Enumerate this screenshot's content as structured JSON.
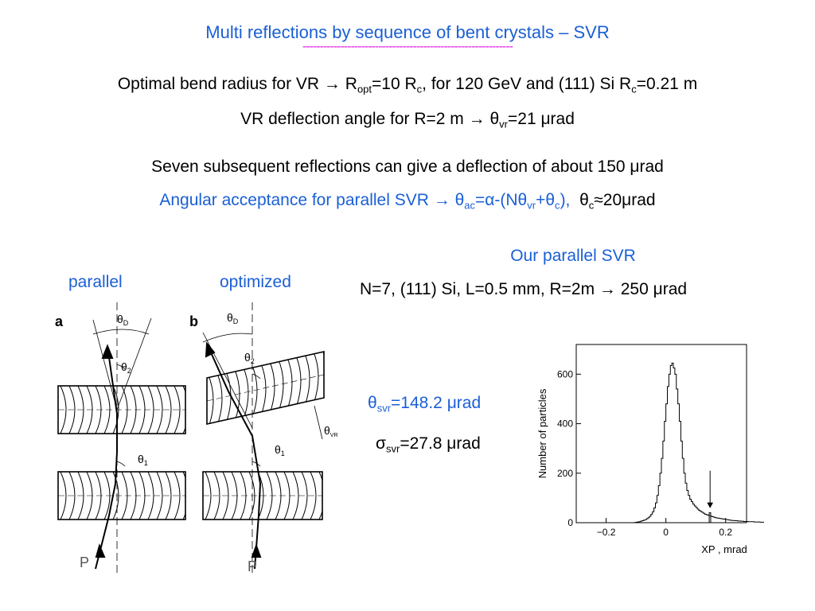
{
  "title": "Multi reflections by sequence of bent crystals – SVR",
  "title_underline": "-------------------------------------------------------------",
  "line1": {
    "a": "Optimal bend radius for VR → R",
    "sub1": "opt",
    "b": "=10 R",
    "sub2": "c",
    "c": ", for 120 GeV and (111) Si R",
    "sub3": "c",
    "d": "=0.21 m"
  },
  "line2": {
    "a": "VR deflection  angle for R=2 m → θ",
    "sub1": "vr",
    "b": "=21 μrad"
  },
  "line3": "Seven subsequent reflections can give a deflection of about 150 μrad",
  "line4": {
    "a": "Angular acceptance for parallel SVR → θ",
    "sub1": "ac",
    "b": "=α-(Nθ",
    "sub2": "vr",
    "c": "+θ",
    "sub3": "c",
    "d": "),",
    "e": "θ",
    "sub4": "c",
    "f": "≈20μrad"
  },
  "our_svr": {
    "heading": "Our parallel SVR",
    "params": "N=7, (111) Si, L=0.5 mm, R=2m → 250 μrad"
  },
  "labels": {
    "parallel": "parallel",
    "optimized": "optimized"
  },
  "diagram": {
    "panel_a": "a",
    "panel_b": "b",
    "theta_d": "θ",
    "theta_d_sub": "D",
    "theta_2": "θ",
    "theta_2_sub": "2",
    "theta_1": "θ",
    "theta_1_sub": "1",
    "theta_vr": "θ",
    "theta_vr_sub": "VR",
    "beam": "P"
  },
  "results": {
    "theta_sym": "θ",
    "theta_sub": "svr",
    "theta_val": "=148.2 μrad",
    "sigma_sym": "σ",
    "sigma_sub": "svr",
    "sigma_val": "=27.8 μrad"
  },
  "chart_data": {
    "type": "histogram",
    "xlabel": "XP , mrad",
    "ylabel": "Number of particles",
    "xlim": [
      -0.3,
      0.27
    ],
    "ylim": [
      0,
      720
    ],
    "xticks": [
      -0.2,
      0,
      0.2
    ],
    "xtick_labels": [
      "−0.2",
      "0",
      "0.2"
    ],
    "yticks": [
      0,
      200,
      400,
      600
    ],
    "ytick_labels": [
      "0",
      "200",
      "400",
      "600"
    ],
    "grid": false,
    "annotation": "arrow pointing to small peak at x≈0.148",
    "bin_width": 0.005,
    "x_start": -0.11,
    "counts": [
      0,
      1,
      2,
      3,
      4,
      6,
      8,
      10,
      12,
      16,
      20,
      26,
      34,
      44,
      60,
      80,
      110,
      150,
      200,
      260,
      330,
      410,
      480,
      550,
      600,
      635,
      645,
      625,
      600,
      540,
      480,
      410,
      330,
      260,
      200,
      160,
      130,
      110,
      95,
      85,
      75,
      68,
      62,
      55,
      50,
      46,
      42,
      38,
      34,
      32,
      30,
      28,
      26,
      24,
      22,
      20,
      19,
      18,
      17,
      16,
      15,
      14,
      13,
      12,
      11,
      10,
      9,
      9,
      8,
      8,
      7,
      7,
      6,
      6,
      5,
      5,
      5,
      4,
      4,
      4,
      4,
      3,
      3,
      3,
      3,
      2,
      2,
      2,
      2,
      2,
      1,
      1,
      1,
      1,
      1,
      1,
      0,
      0,
      0,
      0
    ]
  }
}
